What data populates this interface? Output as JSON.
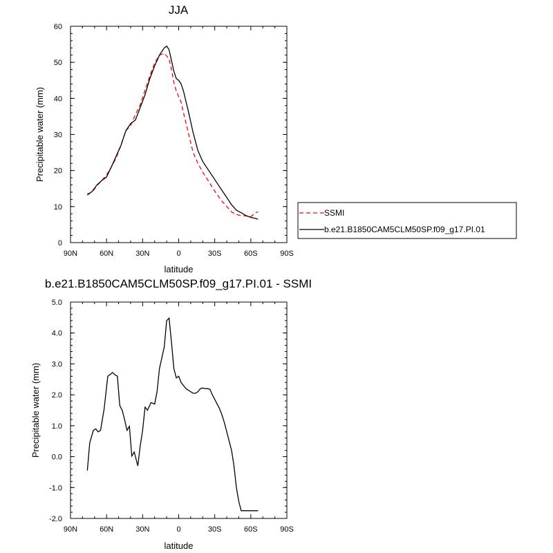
{
  "chart_data": [
    {
      "type": "line",
      "title": "JJA",
      "xlabel": "latitude",
      "ylabel": "Precipitable water (mm)",
      "xlim": [
        90,
        -90
      ],
      "x_ticks": [
        90,
        60,
        30,
        0,
        -30,
        -60,
        -90
      ],
      "x_tick_labels": [
        "90N",
        "60N",
        "30N",
        "0",
        "30S",
        "60S",
        "90S"
      ],
      "ylim": [
        0,
        60
      ],
      "y_ticks": [
        0,
        10,
        20,
        30,
        40,
        50,
        60
      ],
      "y_tick_labels": [
        "0",
        "10",
        "20",
        "30",
        "40",
        "50",
        "60"
      ],
      "grid": false,
      "legend_position": "right",
      "series": [
        {
          "name": "SSMI",
          "color": "#ff0000",
          "dash": "dashed",
          "x": [
            76,
            72,
            68,
            64,
            60,
            56,
            52,
            48,
            44,
            40,
            36,
            32,
            28,
            24,
            20,
            16,
            12,
            8,
            6,
            4,
            2,
            0,
            -2,
            -4,
            -8,
            -12,
            -16,
            -20,
            -24,
            -28,
            -32,
            -36,
            -40,
            -44,
            -48,
            -52,
            -56,
            -60,
            -64,
            -66
          ],
          "y": [
            13.5,
            14,
            15.8,
            17.2,
            18.8,
            21,
            23.5,
            27,
            31,
            32.5,
            35.5,
            38.2,
            42.3,
            46.2,
            49.8,
            52,
            52.5,
            51,
            48,
            44.5,
            42,
            40.5,
            39,
            36,
            30.5,
            25,
            22,
            19.5,
            17.5,
            15.3,
            13.3,
            11.5,
            10,
            8.5,
            7.8,
            7.5,
            7.4,
            7.2,
            8.3,
            8.5
          ]
        },
        {
          "name": "b.e21.B1850CAM5CLM50SP.f09_g17.PI.01",
          "color": "#000000",
          "dash": "solid",
          "x": [
            76,
            72,
            68,
            64,
            60,
            56,
            52,
            48,
            44,
            40,
            36,
            32,
            28,
            24,
            20,
            16,
            12,
            10,
            8,
            6,
            4,
            2,
            0,
            -2,
            -4,
            -8,
            -12,
            -16,
            -20,
            -24,
            -28,
            -32,
            -36,
            -40,
            -44,
            -48,
            -52,
            -56,
            -60,
            -64,
            -66
          ],
          "y": [
            13.2,
            14.2,
            16,
            17.2,
            18.2,
            21,
            24,
            27,
            31,
            33,
            34,
            37.5,
            41,
            45.5,
            49,
            52,
            54,
            54.5,
            53.5,
            50.5,
            47.5,
            45.5,
            45,
            44,
            42,
            36.5,
            30.5,
            25.5,
            22.5,
            20.5,
            18.5,
            16.5,
            14.5,
            12.5,
            10.5,
            9,
            8.3,
            7.5,
            7,
            6.7,
            6.5
          ]
        }
      ]
    },
    {
      "type": "line",
      "title": "b.e21.B1850CAM5CLM50SP.f09_g17.PI.01 - SSMI",
      "xlabel": "latitude",
      "ylabel": "Precipitable water (mm)",
      "xlim": [
        90,
        -90
      ],
      "x_ticks": [
        90,
        60,
        30,
        0,
        -30,
        -60,
        -90
      ],
      "x_tick_labels": [
        "90N",
        "60N",
        "30N",
        "0",
        "30S",
        "60S",
        "90S"
      ],
      "ylim": [
        -2,
        5
      ],
      "y_ticks": [
        -2,
        -1,
        0,
        1,
        2,
        3,
        4,
        5
      ],
      "y_tick_labels": [
        "-2.0",
        "-1.0",
        "0.0",
        "1.0",
        "2.0",
        "3.0",
        "4.0",
        "5.0"
      ],
      "grid": false,
      "series": [
        {
          "name": "",
          "color": "#000000",
          "dash": "solid",
          "x": [
            76,
            74,
            71,
            69,
            67,
            65,
            62,
            59,
            55,
            53,
            51,
            49,
            47,
            45,
            43,
            41,
            39,
            37,
            34,
            32,
            30,
            28,
            26,
            23,
            20,
            18,
            16,
            14,
            12,
            10,
            8,
            6,
            4,
            2,
            0,
            -2,
            -4,
            -6,
            -8,
            -10,
            -12,
            -14,
            -16,
            -18,
            -20,
            -22,
            -24,
            -26,
            -28,
            -30,
            -32,
            -34,
            -36,
            -38,
            -40,
            -42,
            -44,
            -46,
            -48,
            -50,
            -52,
            -54,
            -56,
            -58,
            -60,
            -62,
            -64,
            -66
          ],
          "y": [
            -0.45,
            0.45,
            0.85,
            0.9,
            0.8,
            0.85,
            1.55,
            2.6,
            2.72,
            2.65,
            2.6,
            1.65,
            1.5,
            1.2,
            0.85,
            0.98,
            0.02,
            0.15,
            -0.3,
            0.35,
            0.85,
            1.6,
            1.5,
            1.75,
            1.7,
            2.1,
            2.85,
            3.2,
            3.55,
            4.4,
            4.48,
            3.7,
            2.85,
            2.55,
            2.6,
            2.4,
            2.3,
            2.2,
            2.15,
            2.1,
            2.05,
            2.05,
            2.1,
            2.2,
            2.22,
            2.2,
            2.2,
            2.18,
            2.0,
            1.85,
            1.7,
            1.55,
            1.35,
            1.1,
            0.8,
            0.5,
            0.2,
            -0.3,
            -1.0,
            -1.45,
            -1.75,
            -1.75,
            -1.75,
            -1.75,
            -1.75,
            -1.75,
            -1.75,
            -1.75
          ],
          "x_trim": -58
        }
      ]
    }
  ]
}
